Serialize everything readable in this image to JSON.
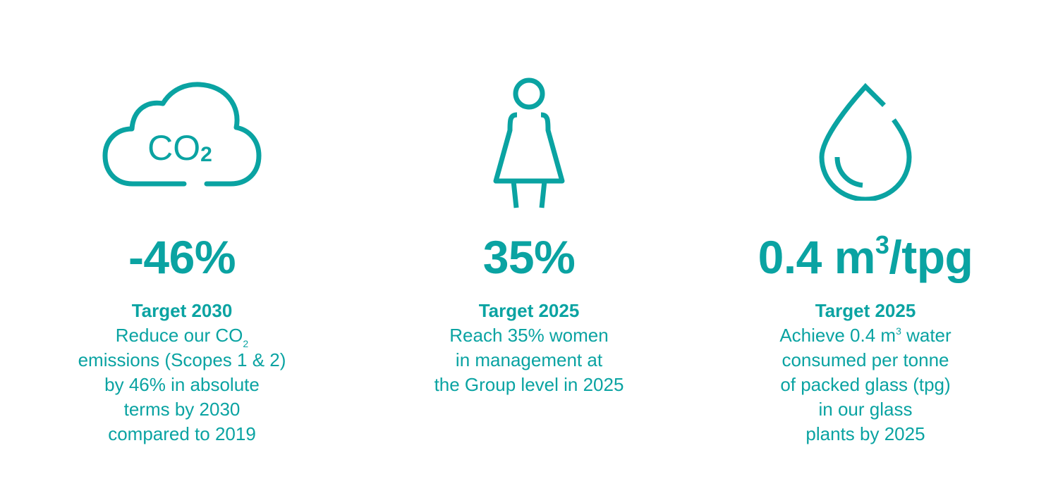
{
  "accent_color": "#0aa3a2",
  "co2": {
    "icon": "co2-cloud-icon",
    "icon_text": "CO",
    "icon_sub": "2",
    "metric": "-46%",
    "target": "Target 2030",
    "lines": [
      "Reduce our CO",
      "emissions (Scopes 1 & 2)",
      "by 46% in absolute",
      "terms by 2030",
      "compared to 2019"
    ],
    "line1_sub": "2"
  },
  "women": {
    "icon": "woman-icon",
    "metric": "35%",
    "target": "Target 2025",
    "lines": [
      "Reach 35% women",
      "in management at",
      "the Group level in 2025"
    ]
  },
  "water": {
    "icon": "water-drop-icon",
    "metric_base": "0.4 m",
    "metric_sup": "3",
    "metric_tail": "/tpg",
    "target": "Target 2025",
    "line1_pre": "Achieve 0.4 m",
    "line1_sup": "3",
    "line1_post": " water",
    "lines": [
      "consumed per tonne",
      "of packed glass (tpg)",
      "in our glass",
      "plants by 2025"
    ]
  }
}
